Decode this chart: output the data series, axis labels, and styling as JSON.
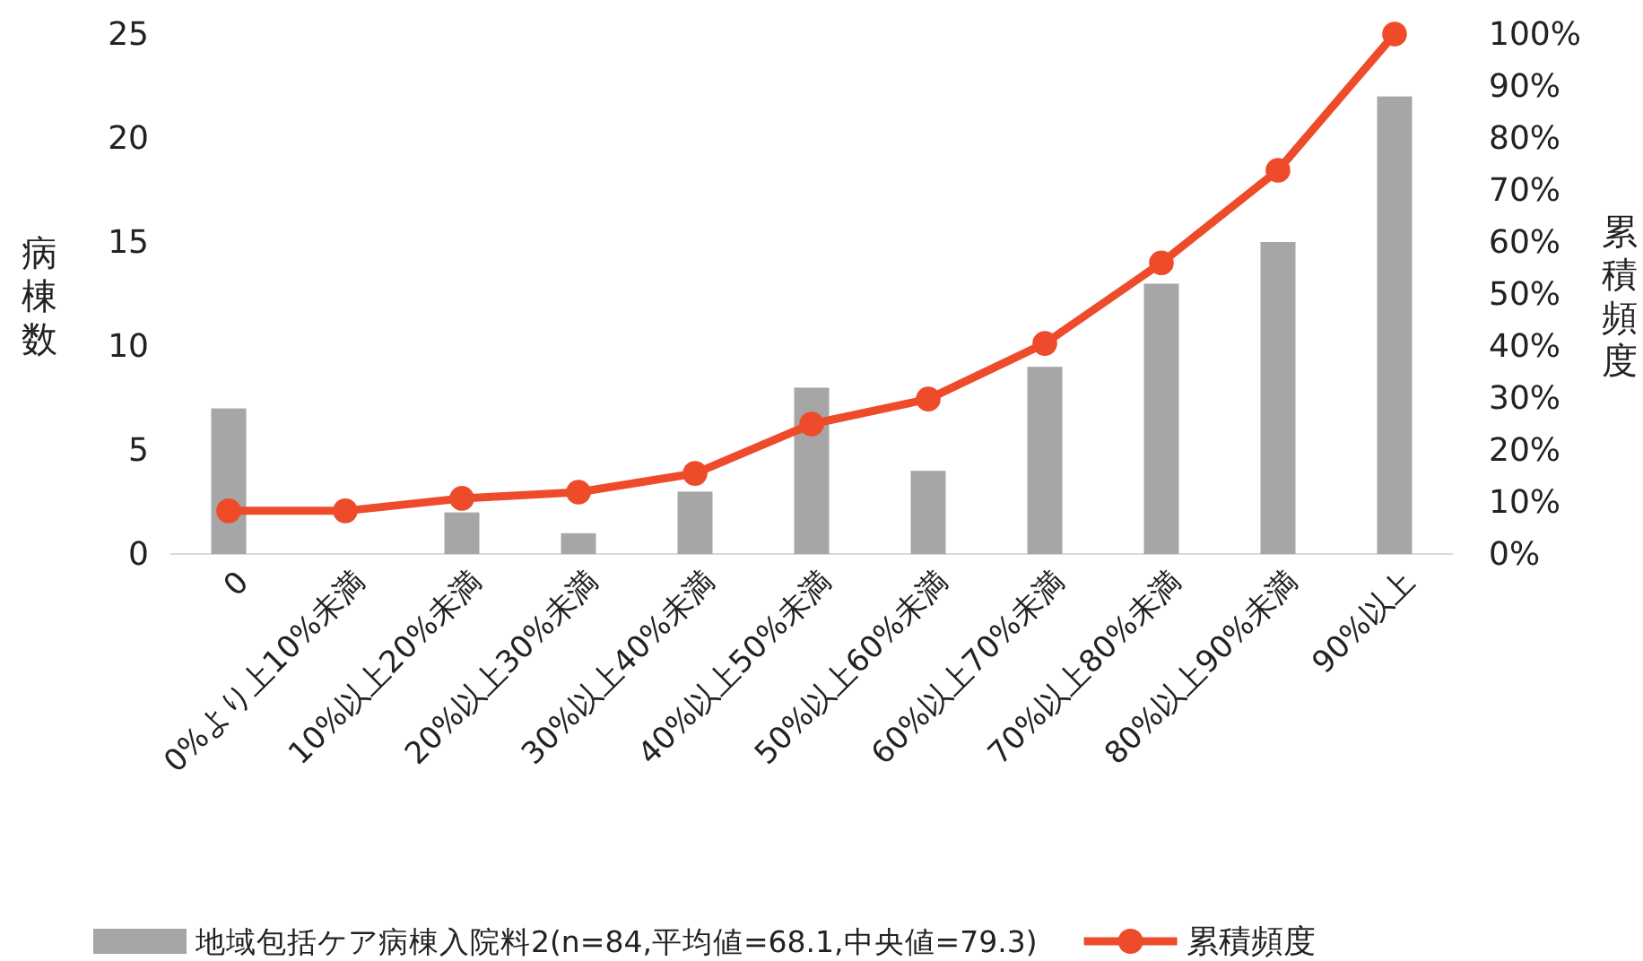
{
  "chart_data": {
    "type": "bar",
    "categories": [
      "0",
      "0%より上10%未満",
      "10%以上20%未満",
      "20%以上30%未満",
      "30%以上40%未満",
      "40%以上50%未満",
      "50%以上60%未満",
      "60%以上70%未満",
      "70%以上80%未満",
      "80%以上90%未満",
      "90%以上"
    ],
    "series": [
      {
        "name": "地域包括ケア病棟入院料2(n=84,平均値=68.1,中央値=79.3)",
        "color": "#a6a6a6",
        "values": [
          7,
          0,
          2,
          1,
          3,
          8,
          4,
          9,
          13,
          15,
          22
        ]
      },
      {
        "name": "累積頻度",
        "type": "line",
        "axis": "y2",
        "color": "#ee4b2b",
        "marker": "circle",
        "line_style": "solid",
        "values": [
          8.3,
          8.3,
          10.7,
          11.9,
          15.5,
          25.0,
          29.8,
          40.5,
          56.0,
          73.8,
          100
        ]
      }
    ],
    "ylabel": "病棟数",
    "y2label": "累積頻度",
    "ylim": [
      0,
      25
    ],
    "yticks": [
      0,
      5,
      10,
      15,
      20,
      25
    ],
    "y2lim": [
      0,
      100
    ],
    "y2ticks": [
      {
        "value": 0,
        "label": "0%"
      },
      {
        "value": 10,
        "label": "10%"
      },
      {
        "value": 20,
        "label": "20%"
      },
      {
        "value": 30,
        "label": "30%"
      },
      {
        "value": 40,
        "label": "40%"
      },
      {
        "value": 50,
        "label": "50%"
      },
      {
        "value": 60,
        "label": "60%"
      },
      {
        "value": 70,
        "label": "70%"
      },
      {
        "value": 80,
        "label": "80%"
      },
      {
        "value": 90,
        "label": "90%"
      },
      {
        "value": 100,
        "label": "100%"
      }
    ],
    "grid": false,
    "legend": "bottom"
  }
}
